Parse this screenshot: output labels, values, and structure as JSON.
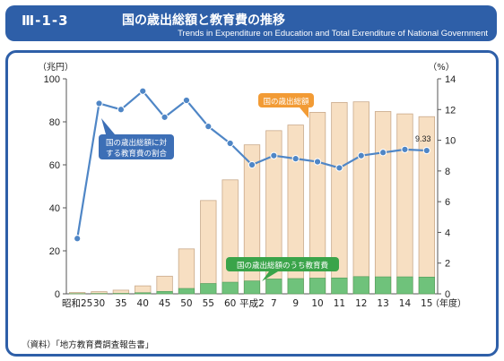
{
  "header": {
    "figure_number": "Ⅲ-1-3",
    "title_ja": "国の歳出総額と教育費の推移",
    "title_en": "Trends in Expenditure on Education and Total Exrenditure of National Government"
  },
  "source_note": "（資料）「地方教育費調査報告書」",
  "colors": {
    "header_bg": "#2e5fa8",
    "total_bar": "#f7dfc2",
    "total_bar_stroke": "#c9a98a",
    "edu_bar": "#6fc27b",
    "line": "#4f86c6",
    "callout_blue": "#3d6fb6",
    "callout_orange": "#f29b35",
    "callout_green": "#3aa44a"
  },
  "chart_data": {
    "type": "bar",
    "categories": [
      "昭和25",
      "30",
      "35",
      "40",
      "45",
      "50",
      "55",
      "60",
      "平成2",
      "7",
      "9",
      "10",
      "11",
      "12",
      "13",
      "14",
      "15"
    ],
    "x_suffix": "（年度）",
    "left_axis": {
      "unit_label": "（兆円）",
      "ticks": [
        0,
        20,
        40,
        60,
        80,
        100
      ],
      "ylim": [
        0,
        100
      ]
    },
    "right_axis": {
      "unit_label": "（%）",
      "ticks": [
        0,
        2,
        4,
        6,
        8,
        10,
        12,
        14
      ],
      "ylim": [
        0,
        14
      ]
    },
    "series": [
      {
        "name": "国の歳出総額",
        "kind": "bar",
        "axis": "left",
        "values": [
          0.6,
          1.0,
          1.7,
          3.7,
          8.2,
          20.9,
          43.4,
          53.0,
          69.3,
          75.9,
          78.5,
          84.4,
          89.0,
          89.3,
          84.8,
          83.7,
          82.4
        ]
      },
      {
        "name": "国の歳出総額のうち教育費",
        "kind": "bar",
        "axis": "left",
        "values": [
          0.1,
          0.15,
          0.2,
          0.5,
          1.1,
          2.5,
          4.8,
          5.4,
          6.0,
          6.9,
          7.1,
          7.3,
          7.4,
          8.0,
          7.9,
          7.9,
          7.8
        ]
      },
      {
        "name": "国の歳出総額に対する教育費の割合",
        "kind": "line",
        "axis": "right",
        "values": [
          3.6,
          12.4,
          12.0,
          13.2,
          11.5,
          12.6,
          10.9,
          9.8,
          8.4,
          9.0,
          8.8,
          8.6,
          8.2,
          9.0,
          9.2,
          9.4,
          9.33
        ]
      }
    ],
    "annotations": {
      "last_ratio_label": "9.33",
      "callout_ratio": "国の歳出総額に対する教育費の割合",
      "callout_total": "国の歳出総額",
      "callout_edu": "国の歳出総額のうち教育費"
    }
  }
}
